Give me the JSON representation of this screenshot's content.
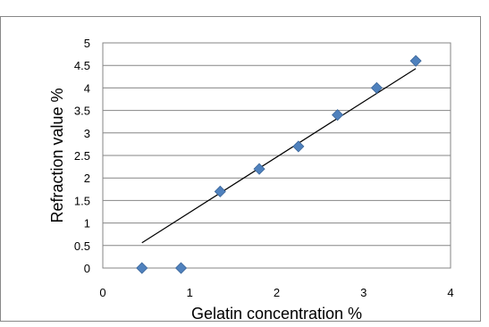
{
  "chart_data": {
    "type": "scatter",
    "title": "",
    "xlabel": "Gelatin concentration %",
    "ylabel": "Refraction value %",
    "xlim": [
      0,
      4
    ],
    "ylim": [
      0,
      5
    ],
    "x_ticks": [
      0,
      1,
      2,
      3,
      4
    ],
    "y_ticks": [
      "0",
      "0.5",
      "1",
      "1.5",
      "2",
      "2.5",
      "3",
      "3.5",
      "4",
      "4.5",
      "5"
    ],
    "grid": "horizontal",
    "legend": "none",
    "marker_color": "#4F81BD",
    "marker_shape": "diamond",
    "series": [
      {
        "points": [
          {
            "x": 0.45,
            "y": 0
          },
          {
            "x": 0.9,
            "y": 0
          },
          {
            "x": 1.35,
            "y": 1.7
          },
          {
            "x": 1.8,
            "y": 2.2
          },
          {
            "x": 2.25,
            "y": 2.7
          },
          {
            "x": 2.7,
            "y": 3.4
          },
          {
            "x": 3.15,
            "y": 4.0
          },
          {
            "x": 3.6,
            "y": 4.6
          }
        ]
      }
    ],
    "trendline": {
      "type": "linear",
      "x_range": [
        0.45,
        3.6
      ],
      "y_range": [
        0.56,
        4.43
      ],
      "color": "#000000"
    }
  }
}
